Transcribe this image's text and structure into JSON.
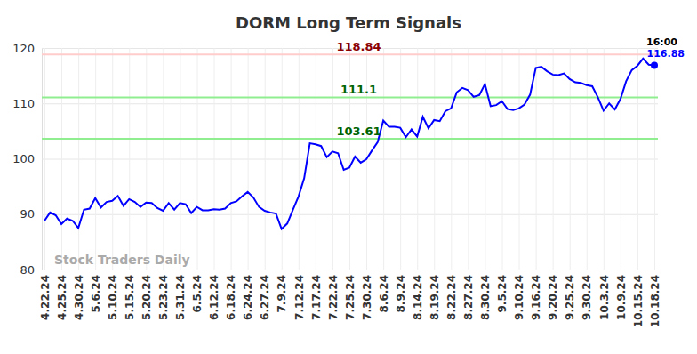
{
  "chart_data": {
    "type": "line",
    "title": "DORM Long Term Signals",
    "watermark": "Stock Traders Daily",
    "categories": [
      "4.22.24",
      null,
      null,
      "4.25.24",
      null,
      null,
      "4.30.24",
      null,
      null,
      "5.6.24",
      null,
      null,
      "5.10.24",
      null,
      null,
      "5.15.24",
      null,
      null,
      "5.20.24",
      null,
      null,
      "5.23.24",
      null,
      null,
      "5.31.24",
      null,
      null,
      "6.5.24",
      null,
      null,
      "6.12.24",
      null,
      null,
      "6.18.24",
      null,
      null,
      "6.24.24",
      null,
      null,
      "6.27.24",
      null,
      null,
      "7.9.24",
      null,
      null,
      "7.12.24",
      null,
      null,
      "7.17.24",
      null,
      null,
      "7.22.24",
      null,
      null,
      "7.25.24",
      null,
      null,
      "7.30.24",
      null,
      null,
      "8.6.24",
      null,
      null,
      "8.9.24",
      null,
      null,
      "8.14.24",
      null,
      null,
      "8.19.24",
      null,
      null,
      "8.22.24",
      null,
      null,
      "8.27.24",
      null,
      null,
      "8.30.24",
      null,
      null,
      "9.5.24",
      null,
      null,
      "9.10.24",
      null,
      null,
      "9.16.24",
      null,
      null,
      "9.20.24",
      null,
      null,
      "9.25.24",
      null,
      null,
      "9.30.24",
      null,
      null,
      "10.3.24",
      null,
      null,
      "10.9.24",
      null,
      null,
      "10.15.24",
      null,
      null,
      "10.18.24"
    ],
    "series": [
      {
        "name": "DORM",
        "color": "#0000ff",
        "values": [
          88.8,
          90.3,
          89.8,
          88.2,
          89.2,
          88.8,
          87.5,
          90.8,
          91.0,
          92.9,
          91.2,
          92.2,
          92.4,
          93.3,
          91.5,
          92.7,
          92.2,
          91.3,
          92.1,
          92.0,
          91.1,
          90.6,
          92.0,
          90.8,
          92.0,
          91.8,
          90.2,
          91.3,
          90.7,
          90.7,
          90.9,
          90.8,
          91.0,
          92.0,
          92.3,
          93.2,
          94.0,
          93.0,
          91.3,
          90.6,
          90.3,
          90.1,
          87.3,
          88.3,
          90.8,
          93.2,
          96.5,
          102.8,
          102.6,
          102.3,
          100.3,
          101.3,
          101.0,
          98.0,
          98.4,
          100.4,
          99.3,
          99.9,
          101.5,
          103.0,
          106.9,
          105.8,
          105.8,
          105.6,
          103.9,
          105.3,
          104.0,
          107.6,
          105.5,
          107.0,
          106.8,
          108.6,
          109.1,
          112.0,
          112.8,
          112.4,
          111.2,
          111.5,
          113.5,
          109.5,
          109.7,
          110.4,
          109.0,
          108.8,
          109.1,
          109.8,
          111.6,
          116.4,
          116.6,
          115.8,
          115.2,
          115.1,
          115.4,
          114.4,
          113.8,
          113.7,
          113.3,
          113.1,
          111.1,
          108.7,
          110.0,
          108.9,
          110.8,
          114.0,
          116.0,
          116.8,
          118.1,
          117.0,
          116.88
        ]
      }
    ],
    "ylim": [
      80,
      120
    ],
    "yticks": [
      80,
      90,
      100,
      110,
      120
    ],
    "grid": true,
    "annotations": [
      {
        "value": 118.84,
        "color": "#ffcccc",
        "label_color": "#8b0000"
      },
      {
        "value": 111.1,
        "color": "#90ee90",
        "label_color": "#006400"
      },
      {
        "value": 103.61,
        "color": "#90ee90",
        "label_color": "#006400"
      }
    ],
    "last_point": {
      "time": "16:00"
    }
  }
}
